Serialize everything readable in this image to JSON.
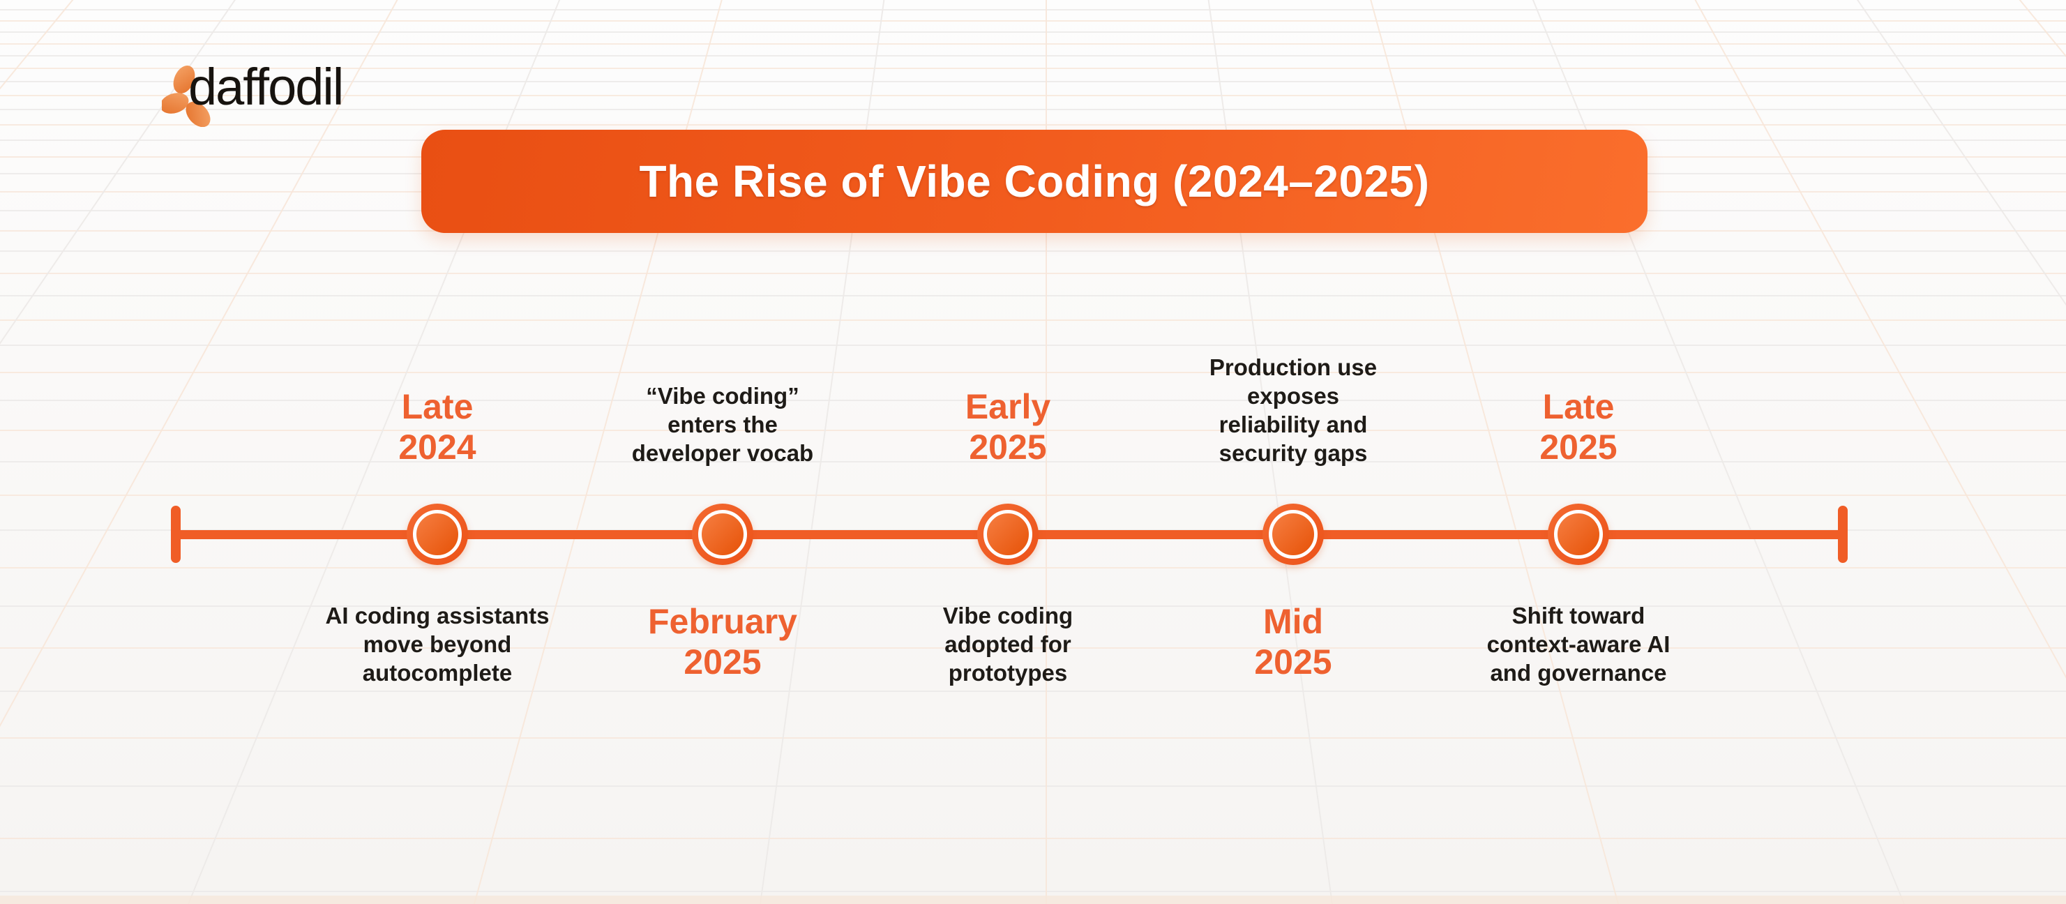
{
  "brand": {
    "wordmark": "daffodil"
  },
  "banner": {
    "title": "The Rise of Vibe Coding (2024–2025)"
  },
  "palette": {
    "orange": "#F05D26",
    "orange_text": "#EE6130",
    "banner_gradient_start": "#E94F13",
    "banner_gradient_end": "#FA6E2C",
    "ink": "#1E1B17",
    "background_top": "#FDFDFD",
    "background_bottom": "#F6F4F2",
    "grid_gray": "#ECEAE9",
    "grid_peach": "#F8E7DA"
  },
  "timeline": {
    "orientation": "horizontal",
    "milestones": [
      {
        "above": {
          "text": "Late\n2024",
          "style": "period"
        },
        "below": {
          "text": "AI coding assistants\nmove beyond\nautocomplete",
          "style": "event"
        }
      },
      {
        "above": {
          "text": "“Vibe coding”\nenters the\ndeveloper vocab",
          "style": "event"
        },
        "below": {
          "text": "February\n2025",
          "style": "period"
        }
      },
      {
        "above": {
          "text": "Early\n2025",
          "style": "period"
        },
        "below": {
          "text": "Vibe coding\nadopted for\nprototypes",
          "style": "event"
        }
      },
      {
        "above": {
          "text": "Production use\nexposes\nreliability and\nsecurity gaps",
          "style": "event"
        },
        "below": {
          "text": "Mid\n2025",
          "style": "period"
        }
      },
      {
        "above": {
          "text": "Late\n2025",
          "style": "period"
        },
        "below": {
          "text": "Shift toward\ncontext-aware AI\nand governance",
          "style": "event"
        }
      }
    ]
  }
}
